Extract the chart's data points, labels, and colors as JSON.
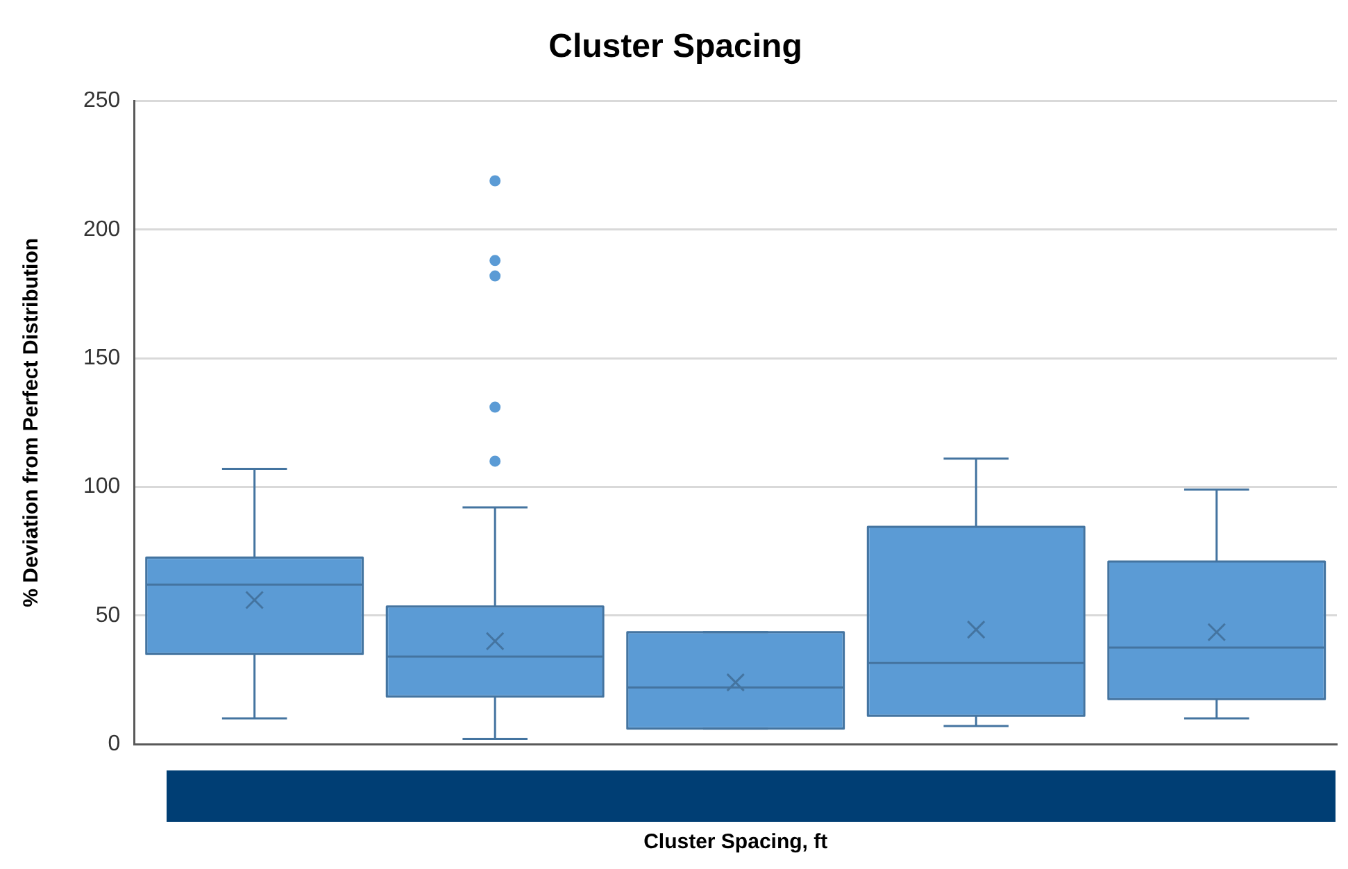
{
  "chart_data": {
    "type": "box",
    "title": "Cluster Spacing",
    "xlabel": "Cluster Spacing, ft",
    "ylabel": "% Deviation from Perfect Distribution",
    "categories": [
      null,
      null,
      null,
      null,
      null
    ],
    "color": "#5b9bd5",
    "boxes": [
      {
        "low": 10,
        "q1": 35,
        "median": 62,
        "q3": 72.5,
        "high": 107,
        "mean": 56
      },
      {
        "low": 2,
        "q1": 18.5,
        "median": 34,
        "q3": 53.5,
        "high": 92,
        "mean": 40,
        "outliers": [
          110,
          131,
          182,
          188,
          219
        ]
      },
      {
        "low": 6,
        "q1": 6,
        "median": 22,
        "q3": 43.5,
        "high": 43.5,
        "mean": 24
      },
      {
        "low": 7,
        "q1": 11,
        "median": 31.5,
        "q3": 84.5,
        "high": 111,
        "mean": 44.5
      },
      {
        "low": 10,
        "q1": 17.5,
        "median": 37.5,
        "q3": 71,
        "high": 99,
        "mean": 43.5
      }
    ],
    "ylim": [
      0,
      250
    ],
    "yticks": [
      0,
      50,
      100,
      150,
      200,
      250
    ],
    "grid": "y"
  }
}
